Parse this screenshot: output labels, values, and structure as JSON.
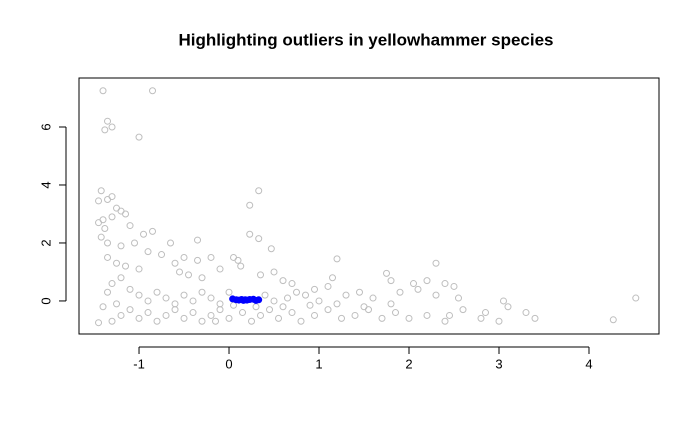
{
  "chart_data": {
    "type": "scatter",
    "title": "Highlighting outliers in yellowhammer species",
    "xlim": [
      -1.667,
      4.778
    ],
    "ylim": [
      -1.14,
      7.69
    ],
    "xticks": [
      -1,
      0,
      1,
      2,
      3,
      4
    ],
    "yticks": [
      0,
      2,
      4,
      6
    ],
    "series": [
      {
        "color": "#bebebe",
        "filled": false,
        "x": [
          -1.4,
          -0.85,
          -1.35,
          -1.3,
          -1.38,
          -1.0,
          -1.42,
          0.33,
          0.23,
          -1.45,
          -1.35,
          -1.3,
          -1.25,
          -1.2,
          -1.15,
          -1.4,
          -1.45,
          -1.38,
          -1.42,
          -1.35,
          -1.3,
          -1.1,
          -0.95,
          -0.85,
          0.23,
          0.33,
          -0.35,
          0.47,
          -0.65,
          -1.2,
          -1.05,
          -0.9,
          -0.75,
          -0.5,
          -0.35,
          -0.2,
          0.1,
          0.05,
          -1.35,
          -1.25,
          -1.15,
          -1.0,
          -0.6,
          -0.55,
          -0.45,
          -0.3,
          -0.1,
          0.13,
          0.35,
          0.5,
          0.6,
          0.7,
          1.2,
          1.15,
          1.75,
          1.8,
          2.3,
          2.4,
          2.2,
          2.05,
          2.1,
          1.9,
          1.6,
          1.45,
          1.3,
          1.1,
          0.95,
          0.85,
          0.75,
          0.65,
          2.5,
          2.55,
          2.3,
          3.05,
          3.1,
          3.0,
          3.3,
          3.4,
          2.8,
          2.85,
          4.52,
          4.27,
          2.45,
          2.4,
          2.2,
          2.0,
          1.85,
          1.7,
          1.55,
          1.4,
          1.25,
          1.1,
          0.95,
          0.8,
          0.7,
          0.55,
          0.45,
          0.35,
          0.25,
          0.15,
          0.0,
          -0.1,
          -0.2,
          -0.3,
          -0.4,
          -0.5,
          -0.6,
          -0.7,
          -0.8,
          -0.9,
          -1.0,
          -1.1,
          -1.2,
          -1.3,
          -1.45,
          -1.4,
          -1.35,
          -1.3,
          -1.2,
          -1.1,
          -1.0,
          -0.9,
          -0.8,
          -0.7,
          -0.6,
          -0.5,
          -0.4,
          -0.3,
          -0.2,
          -0.1,
          0.0,
          0.4,
          0.5,
          0.6,
          1.0,
          1.2,
          1.5,
          1.8,
          2.6,
          -1.25,
          -0.15,
          0.05,
          0.3,
          0.9
        ],
        "values": [
          7.25,
          7.25,
          6.2,
          6.0,
          5.9,
          5.65,
          3.8,
          3.8,
          3.3,
          3.45,
          3.5,
          3.6,
          3.2,
          3.1,
          3.0,
          2.8,
          2.7,
          2.5,
          2.2,
          2.0,
          2.9,
          2.6,
          2.3,
          2.4,
          2.3,
          2.15,
          2.1,
          1.8,
          2.0,
          1.9,
          2.0,
          1.7,
          1.6,
          1.5,
          1.4,
          1.5,
          1.4,
          1.5,
          1.5,
          1.3,
          1.2,
          1.1,
          1.3,
          1.0,
          0.9,
          0.8,
          1.1,
          1.2,
          0.9,
          1.0,
          0.7,
          0.6,
          1.45,
          0.8,
          0.95,
          0.7,
          1.3,
          0.6,
          0.7,
          0.6,
          0.4,
          0.3,
          0.1,
          0.3,
          0.2,
          0.5,
          0.4,
          0.2,
          0.3,
          0.1,
          0.5,
          0.1,
          0.2,
          0.0,
          -0.2,
          -0.7,
          -0.4,
          -0.6,
          -0.6,
          -0.4,
          0.1,
          -0.65,
          -0.5,
          -0.7,
          -0.5,
          -0.6,
          -0.4,
          -0.6,
          -0.3,
          -0.5,
          -0.6,
          -0.3,
          -0.5,
          -0.7,
          -0.4,
          -0.6,
          -0.3,
          -0.5,
          -0.7,
          -0.4,
          -0.6,
          -0.3,
          -0.5,
          -0.7,
          -0.4,
          -0.6,
          -0.3,
          -0.5,
          -0.7,
          -0.4,
          -0.6,
          -0.3,
          -0.5,
          -0.7,
          -0.75,
          -0.2,
          0.3,
          0.6,
          0.8,
          0.4,
          0.2,
          0.0,
          0.3,
          0.1,
          -0.1,
          0.2,
          0.0,
          0.3,
          0.1,
          -0.1,
          0.3,
          0.2,
          0.0,
          -0.2,
          0.0,
          -0.1,
          -0.2,
          -0.1,
          -0.3,
          -0.1,
          -0.7,
          -0.15,
          -0.2,
          -0.15
        ]
      },
      {
        "color": "#0000ff",
        "filled": true,
        "x": [
          0.04,
          0.08,
          0.11,
          0.14,
          0.16,
          0.18,
          0.2,
          0.23,
          0.27,
          0.3,
          0.33
        ],
        "values": [
          0.07,
          0.04,
          0.03,
          0.05,
          0.02,
          0.04,
          0.03,
          0.05,
          0.06,
          0.02,
          0.04
        ]
      }
    ]
  }
}
